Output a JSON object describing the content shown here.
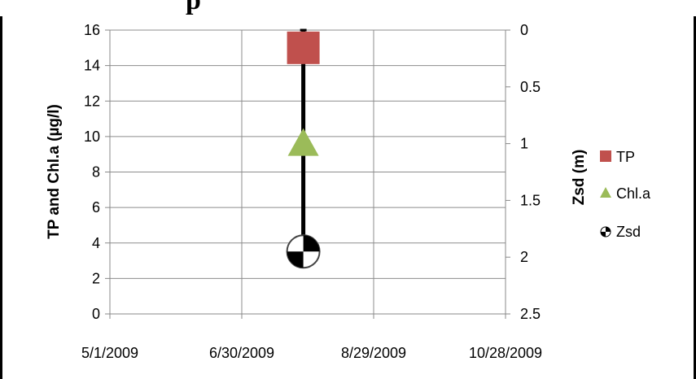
{
  "chart_data": {
    "type": "scatter",
    "title": "",
    "x_tick_labels": [
      "5/1/2009",
      "6/30/2009",
      "8/29/2009",
      "10/28/2009"
    ],
    "x_ticks": [
      "2009-05-01",
      "2009-06-30",
      "2009-08-29",
      "2009-10-28"
    ],
    "xlim": [
      "2009-05-01",
      "2009-10-28"
    ],
    "left_axis": {
      "label": "TP and Chl.a (µg/l)",
      "ylim": [
        0,
        16
      ],
      "tick_labels": [
        "0",
        "2",
        "4",
        "6",
        "8",
        "10",
        "12",
        "14",
        "16"
      ]
    },
    "right_axis": {
      "label": "Zsd (m)",
      "ylim": [
        0,
        2.5
      ],
      "inverted": true,
      "tick_labels": [
        "0",
        "0.5",
        "1",
        "1.5",
        "2",
        "2.5"
      ]
    },
    "series": [
      {
        "name": "TP",
        "axis": "left",
        "marker": "square",
        "color": "#c0504d",
        "points": [
          {
            "x": "2009-07-28",
            "y": 15
          }
        ]
      },
      {
        "name": "Chl.a",
        "axis": "left",
        "marker": "triangle",
        "color": "#9bbb59",
        "points": [
          {
            "x": "2009-07-28",
            "y": 9.6
          }
        ]
      },
      {
        "name": "Zsd",
        "axis": "right",
        "marker": "checkered-circle",
        "color": "#000000",
        "points": [
          {
            "x": "2009-07-28",
            "y": 1.95
          }
        ]
      }
    ],
    "zsd_bar": {
      "x": "2009-07-28",
      "from": 0,
      "to": 1.95
    },
    "grid": true,
    "legend_position": "right"
  }
}
